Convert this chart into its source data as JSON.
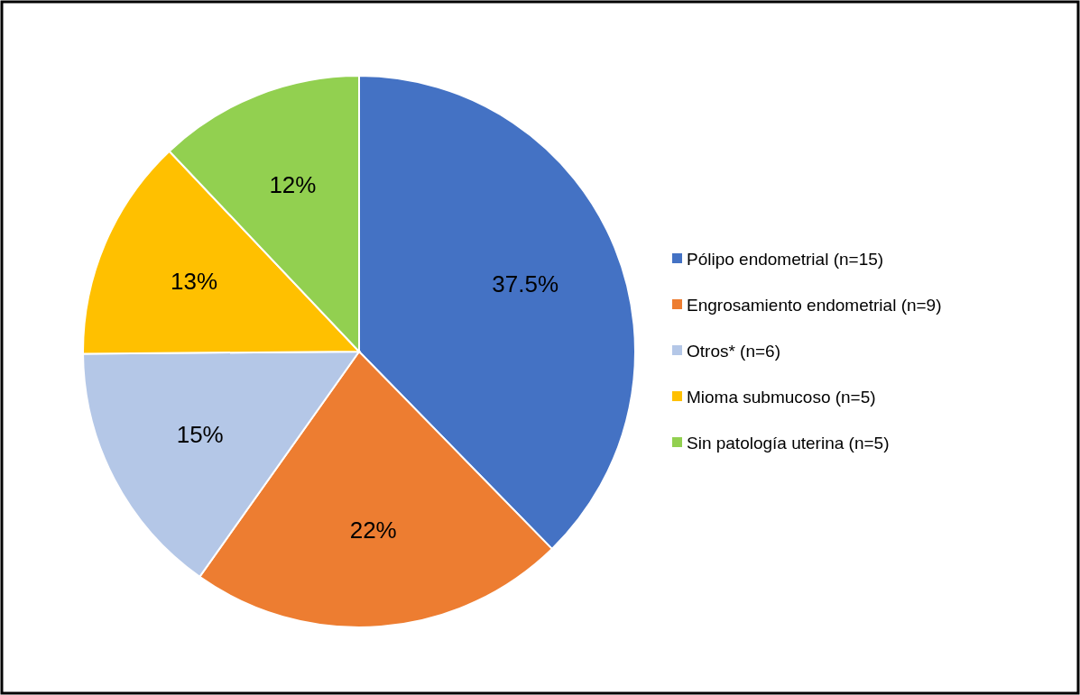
{
  "chart_data": {
    "type": "pie",
    "categories": [
      "Pólipo endometrial (n=15)",
      "Engrosamiento endometrial (n=9)",
      "Otros* (n=6)",
      "Mioma submucoso (n=5)",
      "Sin patología uterina (n=5)"
    ],
    "values": [
      37.5,
      22,
      15,
      13,
      12
    ],
    "colors": [
      "#4472c4",
      "#ed7d31",
      "#b4c7e7",
      "#ffc000",
      "#92d050"
    ],
    "value_labels": [
      "37.5%",
      "22%",
      "15%",
      "13%",
      "12%"
    ],
    "legend": "right"
  }
}
